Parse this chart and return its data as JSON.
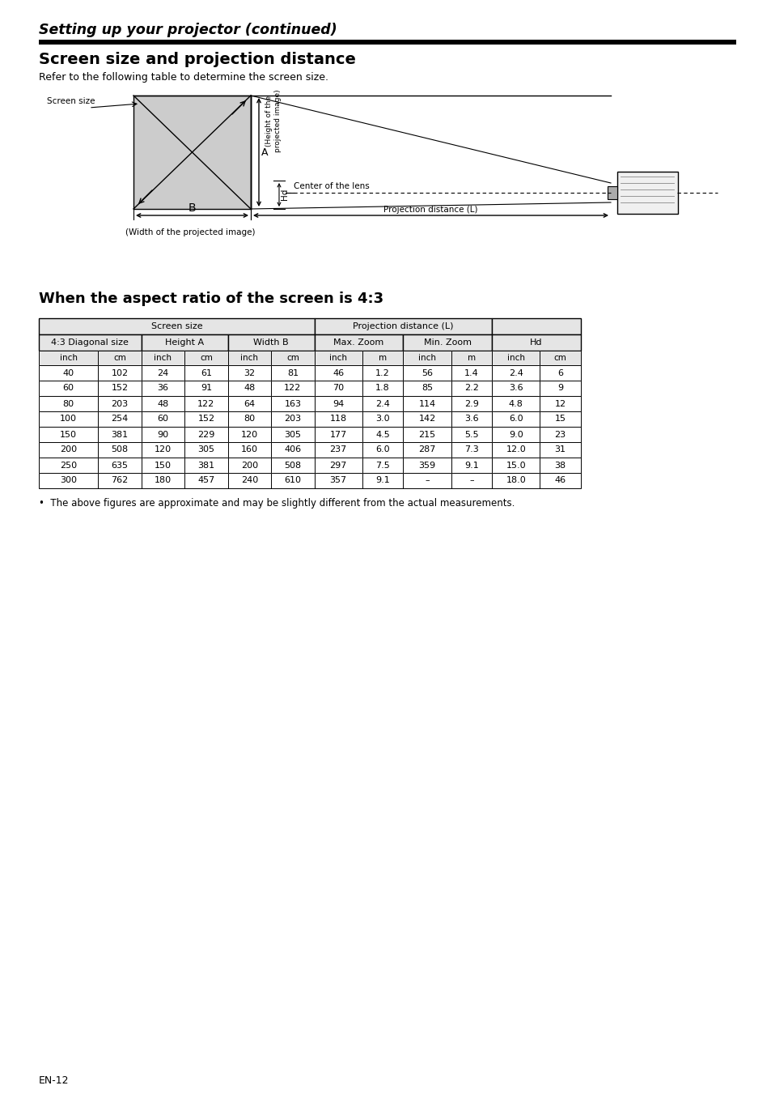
{
  "title_italic": "Setting up your projector (continued)",
  "section_title": "Screen size and projection distance",
  "section_subtitle": "Refer to the following table to determine the screen size.",
  "subsection_title": "When the aspect ratio of the screen is 4:3",
  "footnote": "•  The above figures are approximate and may be slightly different from the actual measurements.",
  "page_label": "EN-12",
  "diagram": {
    "screen_size_label": "Screen size",
    "A_label": "A",
    "height_label": "(Height of the\nprojected image)",
    "Hd_label": "Hd",
    "center_lens_label": "Center of the lens",
    "B_label": "B",
    "width_label": "(Width of the projected image)",
    "proj_dist_label": "Projection distance (L)"
  },
  "table_data": [
    [
      "40",
      "102",
      "24",
      "61",
      "32",
      "81",
      "46",
      "1.2",
      "56",
      "1.4",
      "2.4",
      "6"
    ],
    [
      "60",
      "152",
      "36",
      "91",
      "48",
      "122",
      "70",
      "1.8",
      "85",
      "2.2",
      "3.6",
      "9"
    ],
    [
      "80",
      "203",
      "48",
      "122",
      "64",
      "163",
      "94",
      "2.4",
      "114",
      "2.9",
      "4.8",
      "12"
    ],
    [
      "100",
      "254",
      "60",
      "152",
      "80",
      "203",
      "118",
      "3.0",
      "142",
      "3.6",
      "6.0",
      "15"
    ],
    [
      "150",
      "381",
      "90",
      "229",
      "120",
      "305",
      "177",
      "4.5",
      "215",
      "5.5",
      "9.0",
      "23"
    ],
    [
      "200",
      "508",
      "120",
      "305",
      "160",
      "406",
      "237",
      "6.0",
      "287",
      "7.3",
      "12.0",
      "31"
    ],
    [
      "250",
      "635",
      "150",
      "381",
      "200",
      "508",
      "297",
      "7.5",
      "359",
      "9.1",
      "15.0",
      "38"
    ],
    [
      "300",
      "762",
      "180",
      "457",
      "240",
      "610",
      "357",
      "9.1",
      "–",
      "–",
      "18.0",
      "46"
    ]
  ],
  "background_color": "#ffffff",
  "text_color": "#000000"
}
